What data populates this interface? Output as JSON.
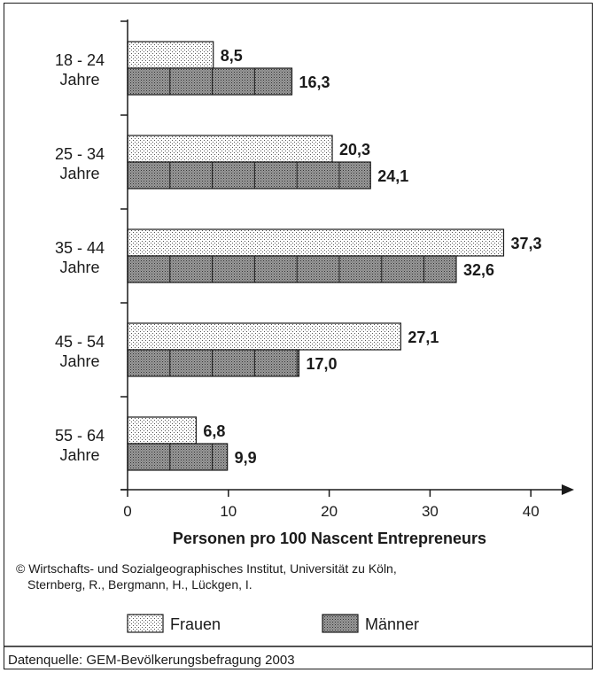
{
  "chart_data": {
    "type": "bar",
    "orientation": "horizontal",
    "categories": [
      [
        "18 - 24",
        "Jahre"
      ],
      [
        "25 - 34",
        "Jahre"
      ],
      [
        "35 - 44",
        "Jahre"
      ],
      [
        "45 - 54",
        "Jahre"
      ],
      [
        "55 - 64",
        "Jahre"
      ]
    ],
    "series": [
      {
        "name": "Frauen",
        "values": [
          8.5,
          20.3,
          37.3,
          27.1,
          6.8
        ],
        "labels": [
          "8,5",
          "20,3",
          "37,3",
          "27,1",
          "6,8"
        ]
      },
      {
        "name": "Männer",
        "values": [
          16.3,
          24.1,
          32.6,
          17.0,
          9.9
        ],
        "labels": [
          "16,3",
          "24,1",
          "32,6",
          "17,0",
          "9,9"
        ]
      }
    ],
    "xlabel": "Personen pro 100 Nascent Entrepreneurs",
    "xticks": [
      "0",
      "10",
      "20",
      "30",
      "40"
    ],
    "xlim": [
      0,
      44
    ],
    "legend_position": "bottom",
    "grid": false
  },
  "credits": {
    "line1": "© Wirtschafts- und Sozialgeographisches Institut, Universität zu Köln,",
    "line2": "Sternberg, R., Bergmann, H., Lückgen, I."
  },
  "source": "Datenquelle: GEM-Bevölkerungsbefragung 2003"
}
